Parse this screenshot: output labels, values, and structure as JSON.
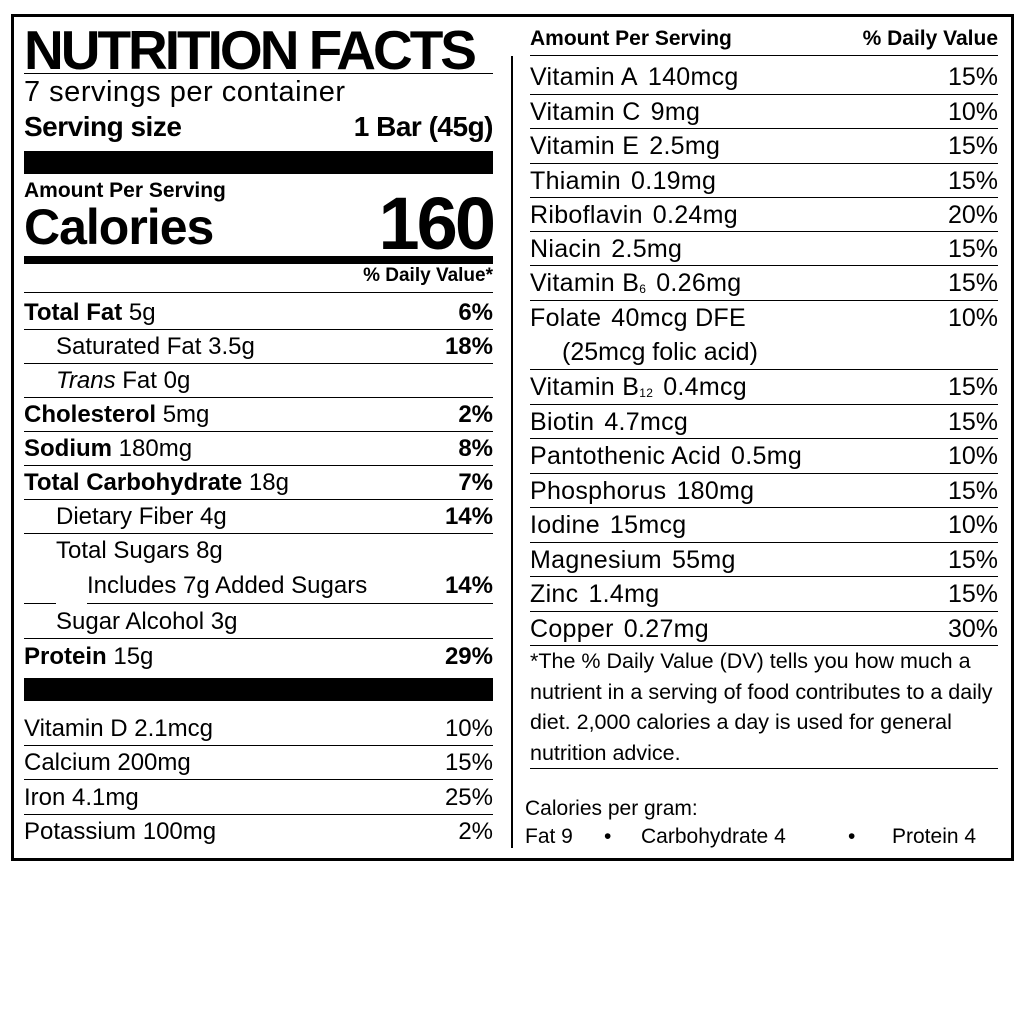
{
  "header": {
    "title": "NUTRITION FACTS",
    "servings": "7 servings per container",
    "serving_size_label": "Serving size",
    "serving_size_value": "1 Bar (45g)",
    "amount_per_serving": "Amount Per Serving",
    "calories_label": "Calories",
    "calories_value": "160",
    "dv_header": "% Daily Value*"
  },
  "nutrients": [
    {
      "name": "Total Fat",
      "amount": "5g",
      "dv": "6%"
    },
    {
      "name": "Saturated Fat",
      "amount": "3.5g",
      "dv": "18%"
    },
    {
      "name": "Trans",
      "name_suffix": "Fat",
      "amount": "0g",
      "dv": ""
    },
    {
      "name": "Cholesterol",
      "amount": "5mg",
      "dv": "2%"
    },
    {
      "name": "Sodium",
      "amount": "180mg",
      "dv": "8%"
    },
    {
      "name": "Total Carbohydrate",
      "amount": "18g",
      "dv": "7%"
    },
    {
      "name": "Dietary Fiber",
      "amount": "4g",
      "dv": "14%"
    },
    {
      "name": "Total Sugars",
      "amount": "8g",
      "dv": ""
    },
    {
      "name": "Includes 7g Added Sugars",
      "amount": "",
      "dv": "14%"
    },
    {
      "name": "Sugar Alcohol",
      "amount": "3g",
      "dv": ""
    },
    {
      "name": "Protein",
      "amount": "15g",
      "dv": "29%"
    }
  ],
  "left_vitamins": [
    {
      "name": "Vitamin D",
      "amount": "2.1mcg",
      "dv": "10%"
    },
    {
      "name": "Calcium",
      "amount": "200mg",
      "dv": "15%"
    },
    {
      "name": "Iron",
      "amount": "4.1mg",
      "dv": "25%"
    },
    {
      "name": "Potassium",
      "amount": "100mg",
      "dv": "2%"
    }
  ],
  "right_header": {
    "amount_per_serving": "Amount Per Serving",
    "dv": "% Daily Value"
  },
  "right_vitamins": [
    {
      "name": "Vitamin A",
      "amount": "140mcg",
      "dv": "15%"
    },
    {
      "name": "Vitamin C",
      "amount": "9mg",
      "dv": "10%"
    },
    {
      "name": "Vitamin E",
      "amount": "2.5mg",
      "dv": "15%"
    },
    {
      "name": "Thiamin",
      "amount": "0.19mg",
      "dv": "15%"
    },
    {
      "name": "Riboflavin",
      "amount": "0.24mg",
      "dv": "20%"
    },
    {
      "name": "Niacin",
      "amount": "2.5mg",
      "dv": "15%"
    },
    {
      "name": "Vitamin B",
      "subscript": "6",
      "amount": "0.26mg",
      "dv": "15%"
    },
    {
      "name": "Folate",
      "amount": "40mcg DFE",
      "extra": "(25mcg folic acid)",
      "dv": "10%"
    },
    {
      "name": "Vitamin B",
      "subscript": "12",
      "amount": "0.4mcg",
      "dv": "15%"
    },
    {
      "name": "Biotin",
      "amount": "4.7mcg",
      "dv": "15%"
    },
    {
      "name": "Pantothenic Acid",
      "amount": "0.5mg",
      "dv": "10%"
    },
    {
      "name": "Phosphorus",
      "amount": "180mg",
      "dv": "15%"
    },
    {
      "name": "Iodine",
      "amount": "15mcg",
      "dv": "10%"
    },
    {
      "name": "Magnesium",
      "amount": "55mg",
      "dv": "15%"
    },
    {
      "name": "Zinc",
      "amount": "1.4mg",
      "dv": "15%"
    },
    {
      "name": "Copper",
      "amount": "0.27mg",
      "dv": "30%"
    }
  ],
  "footnote": "*The % Daily Value (DV) tells you how much a nutrient in a serving of food contributes to a daily diet. 2,000 calories a day is used for general nutrition advice.",
  "calories_per_gram": {
    "label": "Calories per gram:",
    "fat": "Fat 9",
    "carb": "Carbohydrate 4",
    "protein": "Protein 4",
    "bullet": "•"
  }
}
